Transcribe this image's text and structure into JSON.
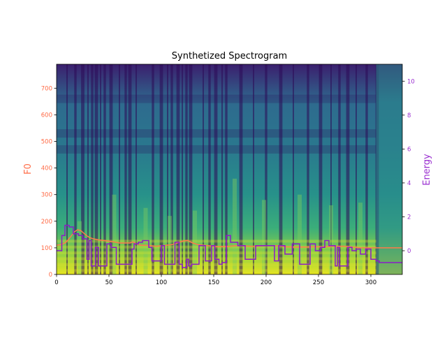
{
  "chart_data": {
    "type": "line",
    "title": "Synthetized Spectrogram",
    "xlabel": "",
    "ylabel": "F0",
    "ylabel_right": "Energy",
    "xlim": [
      0,
      330
    ],
    "ylim": [
      0,
      790
    ],
    "ylim_right": [
      -1.4,
      11
    ],
    "x_ticks": [
      0,
      50,
      100,
      150,
      200,
      250,
      300
    ],
    "y_ticks": [
      0,
      100,
      200,
      300,
      400,
      500,
      600,
      700
    ],
    "y_ticks_right": [
      0,
      2,
      4,
      6,
      8,
      10
    ],
    "background": "spectrogram heatmap (viridis colormap)",
    "grid": false,
    "colors": {
      "f0": "#ff7a4a",
      "energy": "#8a1bc8",
      "left_axis_text": "#ff6a45",
      "right_axis_text": "#9a2fd0"
    },
    "series": [
      {
        "axis": "left",
        "color_key": "f0",
        "x": [
          0,
          4,
          8,
          11,
          14,
          17,
          20,
          23,
          26,
          29,
          32,
          35,
          40,
          45,
          50,
          55,
          60,
          65,
          70,
          73,
          76,
          80,
          85,
          90,
          95,
          100,
          105,
          110,
          115,
          120,
          125,
          130,
          135,
          140,
          145,
          150,
          155,
          160,
          165,
          170,
          175,
          180,
          185,
          190,
          195,
          200,
          205,
          210,
          215,
          220,
          225,
          230,
          235,
          240,
          245,
          250,
          255,
          260,
          265,
          270,
          275,
          280,
          285,
          290,
          295,
          300,
          305,
          310,
          320,
          330
        ],
        "values": [
          110,
          112,
          118,
          130,
          145,
          160,
          168,
          165,
          155,
          145,
          138,
          134,
          130,
          128,
          125,
          122,
          118,
          118,
          118,
          122,
          115,
          110,
          110,
          108,
          106,
          108,
          110,
          112,
          118,
          125,
          128,
          118,
          112,
          110,
          108,
          106,
          104,
          105,
          106,
          108,
          108,
          107,
          106,
          106,
          107,
          108,
          108,
          108,
          106,
          104,
          103,
          103,
          103,
          103,
          104,
          104,
          104,
          105,
          106,
          106,
          106,
          104,
          102,
          100,
          100,
          100,
          100,
          100,
          100,
          100
        ]
      },
      {
        "axis": "right",
        "color_key": "energy",
        "step": true,
        "x": [
          0,
          5,
          8,
          12,
          16,
          21,
          25,
          29,
          31,
          33,
          37,
          40,
          48,
          52,
          57,
          58,
          72,
          74,
          78,
          82,
          88,
          91,
          100,
          103,
          106,
          113,
          117,
          120,
          124,
          126,
          129,
          136,
          142,
          148,
          151,
          155,
          158,
          162,
          166,
          173,
          180,
          182,
          190,
          194,
          208,
          212,
          218,
          222,
          225,
          232,
          236,
          242,
          247,
          252,
          256,
          260,
          266,
          268,
          270,
          274,
          278,
          282,
          286,
          290,
          295,
          300,
          305,
          308,
          311,
          330
        ],
        "values": [
          0,
          0.9,
          1.5,
          1.4,
          1.0,
          0.9,
          0.7,
          -0.5,
          0.6,
          -0.9,
          0.2,
          -0.9,
          0.4,
          0.2,
          -0.8,
          -0.8,
          0.1,
          0.4,
          0.5,
          0.6,
          0.2,
          -0.6,
          0.3,
          -0.8,
          -0.8,
          0.5,
          -0.8,
          -1.0,
          -0.5,
          -0.9,
          -0.8,
          0.3,
          -0.6,
          0.3,
          -0.5,
          -0.8,
          -0.7,
          0.9,
          0.5,
          0.3,
          -0.5,
          -0.5,
          0.3,
          0.3,
          -0.6,
          0.3,
          -0.2,
          -0.2,
          0.4,
          -0.8,
          -0.8,
          0.4,
          0.0,
          0.2,
          0.6,
          0.3,
          -0.9,
          0.2,
          -0.9,
          -0.9,
          0.2,
          0.0,
          0.1,
          -0.2,
          0.1,
          -0.5,
          -0.6,
          -0.7,
          -0.7,
          -0.7
        ]
      }
    ]
  }
}
